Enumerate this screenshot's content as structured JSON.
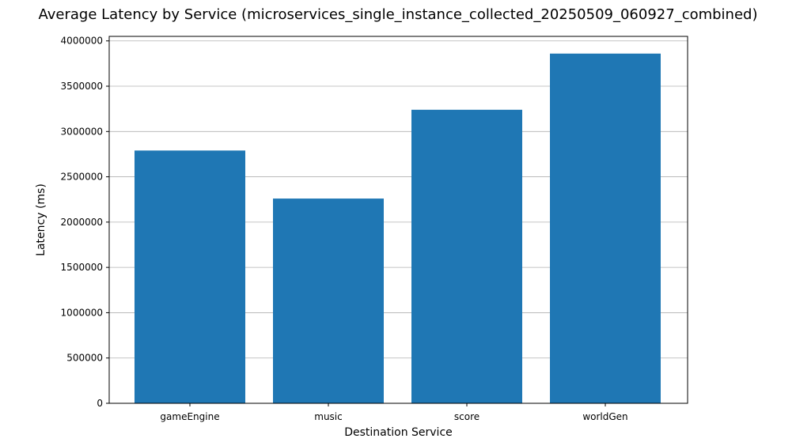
{
  "chart_data": {
    "type": "bar",
    "title": "Average Latency by Service (microservices_single_instance_collected_20250509_060927_combined)",
    "xlabel": "Destination Service",
    "ylabel": "Latency (ms)",
    "categories": [
      "gameEngine",
      "music",
      "score",
      "worldGen"
    ],
    "values": [
      2790000,
      2260000,
      3240000,
      3860000
    ],
    "ylim": [
      0,
      4050000
    ],
    "yticks": [
      0,
      500000,
      1000000,
      1500000,
      2000000,
      2500000,
      3000000,
      3500000,
      4000000
    ],
    "ytick_labels": [
      "0",
      "500000",
      "1000000",
      "1500000",
      "2000000",
      "2500000",
      "3000000",
      "3500000",
      "4000000"
    ],
    "grid": "y-major",
    "bar_color": "#1f77b4",
    "grid_color": "#b0b0b0"
  }
}
